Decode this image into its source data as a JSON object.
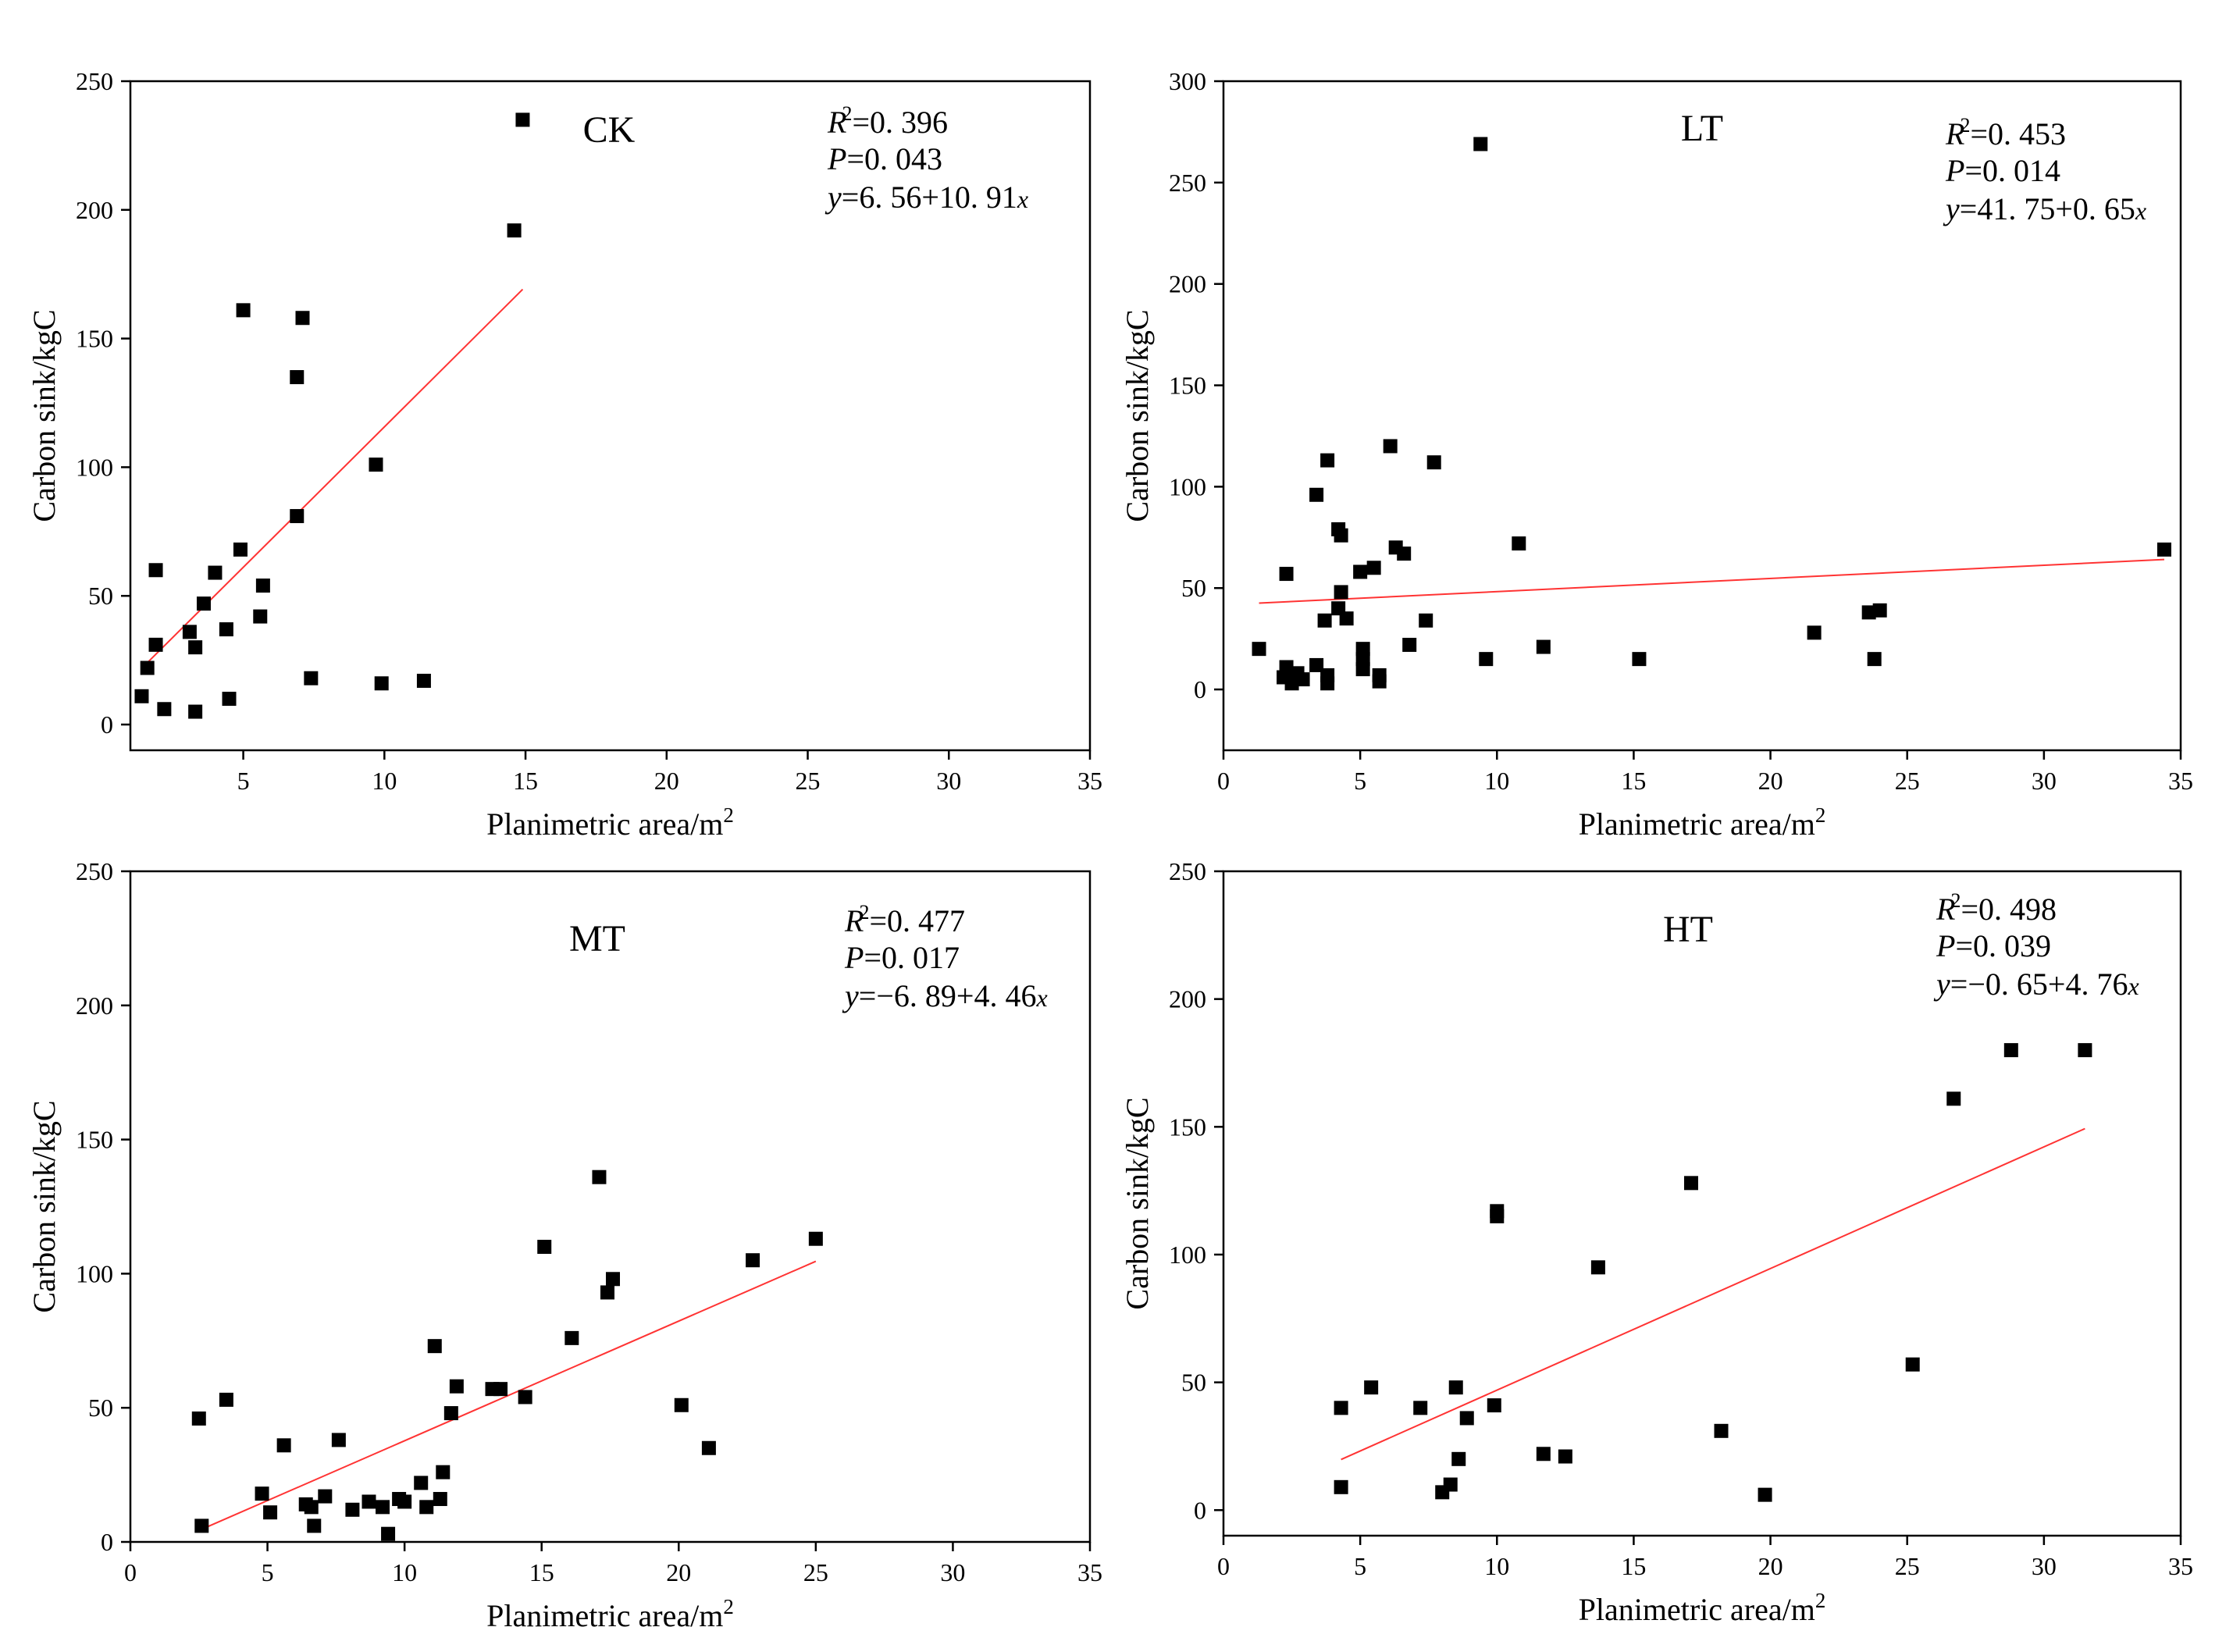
{
  "figure": {
    "chart_data": [
      {
        "type": "scatter",
        "panel_label": "CK",
        "xlabel_main": "Planimetric area/m",
        "xlabel_sup": "2",
        "ylabel": "Carbon sink/kgC",
        "xlim": [
          1,
          35
        ],
        "ylim": [
          -10,
          250
        ],
        "xticks": [
          5,
          10,
          15,
          20,
          25,
          30,
          35
        ],
        "yticks": [
          0,
          50,
          100,
          150,
          200,
          250
        ],
        "stats": {
          "r2": "=0. 396",
          "p": "=0. 043",
          "eq": "=6. 56+10. 91",
          "eq_var": "x"
        },
        "fit": {
          "intercept": 6.56,
          "slope": 10.91,
          "x_range": [
            1.5,
            14.9
          ]
        },
        "points": [
          [
            1.4,
            11
          ],
          [
            1.6,
            22
          ],
          [
            1.9,
            60
          ],
          [
            1.9,
            31
          ],
          [
            2.2,
            6
          ],
          [
            3.1,
            36
          ],
          [
            3.3,
            5
          ],
          [
            3.3,
            30
          ],
          [
            3.6,
            47
          ],
          [
            4.0,
            59
          ],
          [
            4.4,
            37
          ],
          [
            4.5,
            10
          ],
          [
            4.9,
            68
          ],
          [
            5.0,
            161
          ],
          [
            5.6,
            42
          ],
          [
            5.7,
            54
          ],
          [
            6.9,
            135
          ],
          [
            6.9,
            81
          ],
          [
            7.1,
            158
          ],
          [
            7.4,
            18
          ],
          [
            9.7,
            101
          ],
          [
            9.9,
            16
          ],
          [
            11.4,
            17
          ],
          [
            14.6,
            192
          ],
          [
            14.9,
            235
          ]
        ],
        "colors": {
          "marker": "#000000",
          "fit": "#ff3333"
        }
      },
      {
        "type": "scatter",
        "panel_label": "LT",
        "xlabel_main": "Planimetric area/m",
        "xlabel_sup": "2",
        "ylabel": "Carbon sink/kgC",
        "xlim": [
          0,
          35
        ],
        "ylim": [
          -30,
          300
        ],
        "xticks": [
          0,
          5,
          10,
          15,
          20,
          25,
          30,
          35
        ],
        "yticks": [
          0,
          50,
          100,
          150,
          200,
          250,
          300
        ],
        "stats": {
          "r2": "=0. 453",
          "p": "=0. 014",
          "eq": "=41. 75+0. 65",
          "eq_var": "x"
        },
        "fit": {
          "intercept": 41.75,
          "slope": 0.65,
          "x_range": [
            1.3,
            34.4
          ]
        },
        "points": [
          [
            1.3,
            20
          ],
          [
            2.2,
            6
          ],
          [
            2.3,
            57
          ],
          [
            2.3,
            11
          ],
          [
            2.5,
            3
          ],
          [
            2.7,
            8
          ],
          [
            2.9,
            5
          ],
          [
            3.4,
            12
          ],
          [
            3.4,
            96
          ],
          [
            3.7,
            34
          ],
          [
            3.8,
            7
          ],
          [
            3.8,
            113
          ],
          [
            3.8,
            3
          ],
          [
            4.2,
            40
          ],
          [
            4.2,
            79
          ],
          [
            4.3,
            76
          ],
          [
            4.3,
            48
          ],
          [
            4.5,
            35
          ],
          [
            5.0,
            58
          ],
          [
            5.1,
            20
          ],
          [
            5.1,
            15
          ],
          [
            5.1,
            10
          ],
          [
            5.5,
            60
          ],
          [
            5.7,
            4
          ],
          [
            5.7,
            7
          ],
          [
            6.1,
            120
          ],
          [
            6.3,
            70
          ],
          [
            6.6,
            67
          ],
          [
            6.8,
            22
          ],
          [
            7.4,
            34
          ],
          [
            7.7,
            112
          ],
          [
            9.4,
            269
          ],
          [
            9.6,
            15
          ],
          [
            10.8,
            72
          ],
          [
            11.7,
            21
          ],
          [
            15.2,
            15
          ],
          [
            21.6,
            28
          ],
          [
            23.6,
            38
          ],
          [
            23.8,
            15
          ],
          [
            24.0,
            39
          ],
          [
            34.4,
            69
          ]
        ],
        "colors": {
          "marker": "#000000",
          "fit": "#ff3333"
        }
      },
      {
        "type": "scatter",
        "panel_label": "MT",
        "xlabel_main": "Planimetric area/m",
        "xlabel_sup": "2",
        "ylabel": "Carbon sink/kgC",
        "xlim": [
          0,
          35
        ],
        "ylim": [
          0,
          250
        ],
        "xticks": [
          0,
          5,
          10,
          15,
          20,
          25,
          30,
          35
        ],
        "yticks": [
          0,
          50,
          100,
          150,
          200,
          250
        ],
        "stats": {
          "r2": "=0. 477",
          "p": "=0. 017",
          "eq": "=−6. 89+4. 46",
          "eq_var": "x"
        },
        "fit": {
          "intercept": -6.89,
          "slope": 4.46,
          "x_range": [
            2.6,
            25.0
          ]
        },
        "points": [
          [
            2.5,
            46
          ],
          [
            2.6,
            6
          ],
          [
            3.5,
            53
          ],
          [
            4.8,
            18
          ],
          [
            5.1,
            11
          ],
          [
            5.6,
            36
          ],
          [
            6.4,
            14
          ],
          [
            6.6,
            13
          ],
          [
            6.7,
            6
          ],
          [
            7.1,
            17
          ],
          [
            7.6,
            38
          ],
          [
            8.1,
            12
          ],
          [
            8.7,
            15
          ],
          [
            9.2,
            13
          ],
          [
            9.4,
            3
          ],
          [
            9.8,
            16
          ],
          [
            10.0,
            15
          ],
          [
            10.6,
            22
          ],
          [
            10.8,
            13
          ],
          [
            11.1,
            73
          ],
          [
            11.3,
            16
          ],
          [
            11.4,
            26
          ],
          [
            11.7,
            48
          ],
          [
            11.9,
            58
          ],
          [
            13.2,
            57
          ],
          [
            13.5,
            57
          ],
          [
            14.4,
            54
          ],
          [
            15.1,
            110
          ],
          [
            16.1,
            76
          ],
          [
            17.1,
            136
          ],
          [
            17.4,
            93
          ],
          [
            17.6,
            98
          ],
          [
            20.1,
            51
          ],
          [
            21.1,
            35
          ],
          [
            22.7,
            105
          ],
          [
            25.0,
            113
          ]
        ],
        "colors": {
          "marker": "#000000",
          "fit": "#ff3333"
        }
      },
      {
        "type": "scatter",
        "panel_label": "HT",
        "xlabel_main": "Planimetric area/m",
        "xlabel_sup": "2",
        "ylabel": "Carbon sink/kgC",
        "xlim": [
          0,
          35
        ],
        "ylim": [
          -10,
          250
        ],
        "xticks": [
          0,
          5,
          10,
          15,
          20,
          25,
          30,
          35
        ],
        "yticks": [
          0,
          50,
          100,
          150,
          200,
          250
        ],
        "stats": {
          "r2": "=0. 498",
          "p": "=0. 039",
          "eq": "=−0. 65+4. 76",
          "eq_var": "x"
        },
        "fit": {
          "intercept": -0.65,
          "slope": 4.76,
          "x_range": [
            4.3,
            31.5
          ]
        },
        "points": [
          [
            4.3,
            9
          ],
          [
            4.3,
            40
          ],
          [
            5.4,
            48
          ],
          [
            7.2,
            40
          ],
          [
            8.0,
            7
          ],
          [
            8.3,
            10
          ],
          [
            8.5,
            48
          ],
          [
            8.6,
            20
          ],
          [
            8.9,
            36
          ],
          [
            9.9,
            41
          ],
          [
            10.0,
            115
          ],
          [
            10.0,
            117
          ],
          [
            11.7,
            22
          ],
          [
            12.5,
            21
          ],
          [
            13.7,
            95
          ],
          [
            17.1,
            128
          ],
          [
            18.2,
            31
          ],
          [
            19.8,
            6
          ],
          [
            25.2,
            57
          ],
          [
            26.7,
            161
          ],
          [
            28.8,
            180
          ],
          [
            31.5,
            180
          ]
        ],
        "colors": {
          "marker": "#000000",
          "fit": "#ff3333"
        }
      }
    ]
  }
}
